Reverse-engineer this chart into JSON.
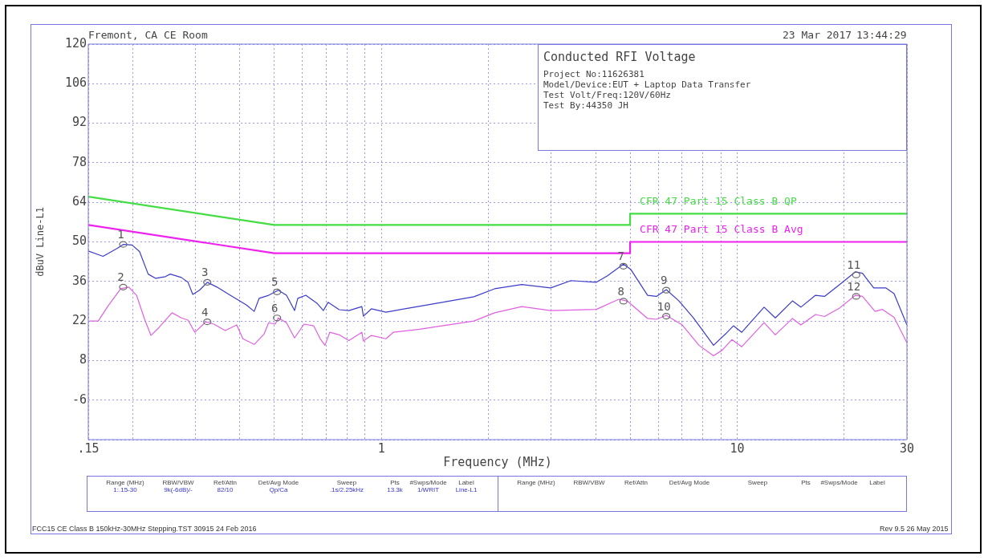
{
  "chart_data": {
    "type": "line",
    "title": "Conducted RFI Voltage",
    "xlabel": "Frequency (MHz)",
    "ylabel": "dBuV Line-L1",
    "xlim": [
      0.15,
      30
    ],
    "ylim": [
      -20,
      120
    ],
    "log": "x",
    "grid": true,
    "legend": false,
    "marker": "none",
    "line_style": "solid",
    "xticks": [
      {
        "value": 0.15,
        "label": ".15"
      },
      {
        "value": 0.2,
        "label": null
      },
      {
        "value": 0.3,
        "label": null
      },
      {
        "value": 0.4,
        "label": null
      },
      {
        "value": 0.5,
        "label": null
      },
      {
        "value": 0.6,
        "label": null
      },
      {
        "value": 0.7,
        "label": null
      },
      {
        "value": 0.8,
        "label": null
      },
      {
        "value": 0.9,
        "label": null
      },
      1,
      {
        "value": 2,
        "label": null
      },
      {
        "value": 3,
        "label": null
      },
      {
        "value": 4,
        "label": null
      },
      {
        "value": 5,
        "label": null
      },
      {
        "value": 6,
        "label": null
      },
      {
        "value": 7,
        "label": null
      },
      {
        "value": 8,
        "label": null
      },
      {
        "value": 9,
        "label": null
      },
      10,
      {
        "value": 20,
        "label": null
      },
      30
    ],
    "yticks": [
      120,
      106,
      92,
      78,
      64,
      50,
      36,
      22,
      8,
      -6,
      {
        "value": -20,
        "label": null
      }
    ],
    "series": [
      {
        "name": "CFR 47 Part 15 Class B QP",
        "color": "#44dd44",
        "x": [
          0.15,
          0.5,
          5,
          5,
          30
        ],
        "values": [
          66,
          56,
          56,
          60,
          60
        ]
      },
      {
        "name": "CFR 47 Part 15 Class B Avg",
        "color": "#ee22ee",
        "x": [
          0.15,
          0.5,
          5,
          5,
          30
        ],
        "values": [
          56,
          46,
          46,
          50,
          50
        ]
      },
      {
        "color": "#3c3cc8",
        "x": [
          0.15,
          0.165,
          0.181,
          0.188,
          0.199,
          0.209,
          0.221,
          0.232,
          0.247,
          0.255,
          0.274,
          0.286,
          0.295,
          0.308,
          0.324,
          0.345,
          0.376,
          0.417,
          0.439,
          0.453,
          0.482,
          0.513,
          0.541,
          0.57,
          0.582,
          0.613,
          0.659,
          0.687,
          0.708,
          0.761,
          0.81,
          0.881,
          0.89,
          0.937,
          1.03,
          1.2,
          1.48,
          1.82,
          2.08,
          2.48,
          2.99,
          3.41,
          4.02,
          4.32,
          4.79,
          5.02,
          5.6,
          5.93,
          6.32,
          6.86,
          7.53,
          8.58,
          9.27,
          9.76,
          10.3,
          11.9,
          12.8,
          14.3,
          15.1,
          16.6,
          17.6,
          19.4,
          21.5,
          22.5,
          24.2,
          26.2,
          27.6,
          30
        ],
        "values": [
          46.8,
          44.9,
          47.7,
          49.1,
          48.9,
          46.6,
          38.6,
          37.1,
          37.7,
          38.6,
          37.4,
          35.7,
          31.4,
          32.9,
          35.7,
          34,
          31.1,
          27.7,
          25.4,
          30,
          31.1,
          32.9,
          31.1,
          25.7,
          30,
          31.1,
          28.3,
          25.7,
          28.6,
          26,
          25.7,
          27.1,
          23.7,
          26.3,
          25.1,
          26.6,
          28.6,
          30.6,
          33.4,
          34.9,
          33.7,
          36.3,
          35.7,
          38,
          42.1,
          40.3,
          31.1,
          30.7,
          33.1,
          29.1,
          23.1,
          13.4,
          17.4,
          20.3,
          18,
          26.9,
          23.1,
          29.1,
          26.9,
          31.1,
          30.7,
          34.9,
          39.4,
          38.9,
          33.7,
          33.7,
          31.7,
          20.6
        ]
      },
      {
        "color": "#e060e0",
        "x": [
          0.151,
          0.16,
          0.17,
          0.185,
          0.195,
          0.205,
          0.216,
          0.225,
          0.237,
          0.258,
          0.274,
          0.286,
          0.299,
          0.321,
          0.338,
          0.364,
          0.392,
          0.408,
          0.439,
          0.468,
          0.482,
          0.503,
          0.513,
          0.541,
          0.57,
          0.606,
          0.645,
          0.673,
          0.694,
          0.716,
          0.761,
          0.81,
          0.881,
          0.89,
          0.937,
          1.03,
          1.08,
          1.28,
          1.48,
          1.82,
          2.08,
          2.48,
          2.99,
          4.02,
          4.65,
          4.92,
          5.6,
          5.93,
          6.32,
          7.01,
          7.81,
          8.58,
          9.08,
          9.66,
          10.3,
          11.9,
          12.8,
          14.3,
          15.1,
          16.6,
          17.6,
          19.4,
          21.5,
          22.5,
          24.4,
          25.6,
          27.6,
          30
        ],
        "values": [
          22,
          22,
          27.1,
          33.4,
          34,
          31.1,
          22.6,
          16.9,
          19.7,
          24.9,
          23.1,
          22.3,
          18,
          21.7,
          20.9,
          18.6,
          20.6,
          15.7,
          13.7,
          17.4,
          21.4,
          20.9,
          23.1,
          21.4,
          16,
          20.9,
          20.3,
          15.7,
          13.4,
          18,
          17.1,
          15.1,
          18,
          14.9,
          16.9,
          15.7,
          18,
          19.1,
          20.3,
          22,
          24.9,
          27.1,
          25.7,
          26.1,
          29.7,
          29,
          22.9,
          22.6,
          24,
          20.6,
          13.4,
          9.7,
          11.7,
          15.4,
          12.9,
          21.4,
          17.1,
          22.9,
          20.6,
          24.3,
          23.6,
          26.6,
          31.1,
          30.7,
          25.4,
          26.1,
          23.3,
          14.3
        ]
      }
    ],
    "annotations": [
      "Fremont, CA CE Room",
      "23 Mar 2017",
      "13:44:29",
      "Project No:11626381",
      "Model/Device:EUT + Laptop Data Transfer",
      "Test Volt/Freq:120V/60Hz",
      "Test By:44350 JH",
      "Range (MHz)",
      "RBW/VBW",
      "Ref/Attn",
      "Det/Avg Mode",
      "Sweep",
      "Pts",
      "#Swps/Mode",
      "Label",
      "1:.15-30",
      "9k(-6dB)/-",
      "82/10",
      "Qp/Ca",
      ".1s/2.25kHz",
      "13.3k",
      "1/WRIT",
      "Line-L1",
      "Range (MHz)",
      "RBW/VBW",
      "Ref/Attn",
      "Det/Avg Mode",
      "Sweep",
      "Pts",
      "#Swps/Mode",
      "Label",
      "FCC15 CE Class B 150kHz-30MHz Stepping.TST 30915 24 Feb 2016",
      "Rev 9.5 26 May 2015",
      {
        "text": "1",
        "x": 0.188,
        "y": 49.1
      },
      {
        "text": "2",
        "x": 0.188,
        "y": 34
      },
      {
        "text": "3",
        "x": 0.324,
        "y": 35.7
      },
      {
        "text": "4",
        "x": 0.324,
        "y": 21.7
      },
      {
        "text": "5",
        "x": 0.509,
        "y": 32.3
      },
      {
        "text": "6",
        "x": 0.509,
        "y": 23.1
      },
      {
        "text": "7",
        "x": 4.79,
        "y": 41.4
      },
      {
        "text": "8",
        "x": 4.79,
        "y": 29
      },
      {
        "text": "9",
        "x": 6.32,
        "y": 32.9
      },
      {
        "text": "10",
        "x": 6.32,
        "y": 23.7
      },
      {
        "text": "11",
        "x": 21.6,
        "y": 38.3
      },
      {
        "text": "12",
        "x": 21.6,
        "y": 30.7
      }
    ]
  }
}
